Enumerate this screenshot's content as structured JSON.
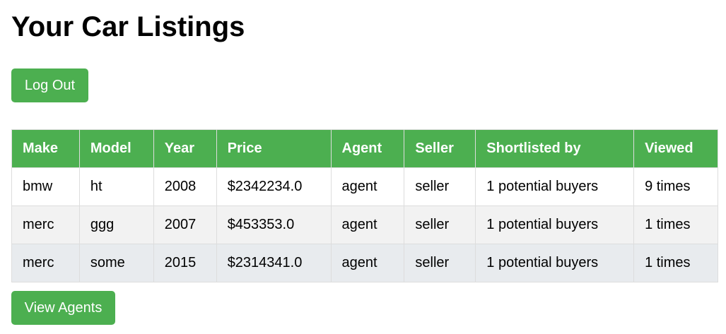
{
  "page": {
    "title": "Your Car Listings"
  },
  "buttons": {
    "logout_label": "Log Out",
    "view_agents_label": "View Agents"
  },
  "colors": {
    "accent": "#4caf50",
    "row_alt": "#f2f2f2",
    "row_hover": "#e8ebee"
  },
  "table": {
    "headers": [
      "Make",
      "Model",
      "Year",
      "Price",
      "Agent",
      "Seller",
      "Shortlisted by",
      "Viewed"
    ],
    "rows": [
      [
        "bmw",
        "ht",
        "2008",
        "$2342234.0",
        "agent",
        "seller",
        "1 potential buyers",
        "9 times"
      ],
      [
        "merc",
        "ggg",
        "2007",
        "$453353.0",
        "agent",
        "seller",
        "1 potential buyers",
        "1 times"
      ],
      [
        "merc",
        "some",
        "2015",
        "$2314341.0",
        "agent",
        "seller",
        "1 potential buyers",
        "1 times"
      ]
    ]
  }
}
